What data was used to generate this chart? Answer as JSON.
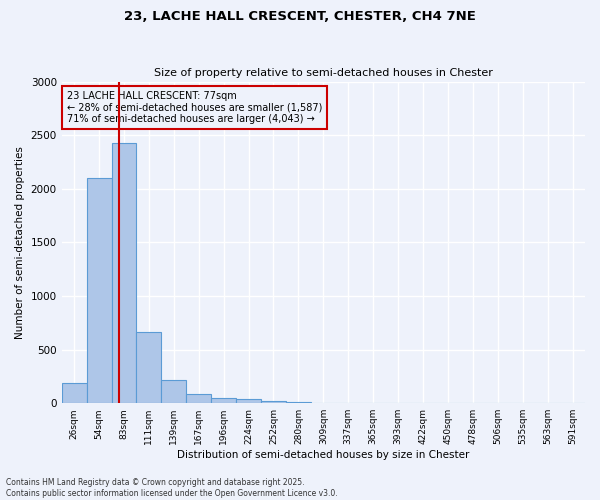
{
  "title_line1": "23, LACHE HALL CRESCENT, CHESTER, CH4 7NE",
  "title_line2": "Size of property relative to semi-detached houses in Chester",
  "xlabel": "Distribution of semi-detached houses by size in Chester",
  "ylabel": "Number of semi-detached properties",
  "bar_color": "#aec6e8",
  "bar_edge_color": "#5b9bd5",
  "marker_line_color": "#cc0000",
  "annotation_title": "23 LACHE HALL CRESCENT: 77sqm",
  "annotation_line1": "← 28% of semi-detached houses are smaller (1,587)",
  "annotation_line2": "71% of semi-detached houses are larger (4,043) →",
  "annotation_box_color": "#cc0000",
  "annotation_text_color": "#000000",
  "categories": [
    "26sqm",
    "54sqm",
    "83sqm",
    "111sqm",
    "139sqm",
    "167sqm",
    "196sqm",
    "224sqm",
    "252sqm",
    "280sqm",
    "309sqm",
    "337sqm",
    "365sqm",
    "393sqm",
    "422sqm",
    "450sqm",
    "478sqm",
    "506sqm",
    "535sqm",
    "563sqm",
    "591sqm"
  ],
  "values": [
    185,
    2100,
    2430,
    660,
    215,
    90,
    50,
    40,
    25,
    10,
    5,
    2,
    1,
    0,
    0,
    0,
    0,
    0,
    0,
    0,
    0
  ],
  "ylim": [
    0,
    3000
  ],
  "yticks": [
    0,
    500,
    1000,
    1500,
    2000,
    2500,
    3000
  ],
  "background_color": "#eef2fb",
  "grid_color": "#ffffff",
  "footer_line1": "Contains HM Land Registry data © Crown copyright and database right 2025.",
  "footer_line2": "Contains public sector information licensed under the Open Government Licence v3.0.",
  "figsize": [
    6.0,
    5.0
  ],
  "dpi": 100
}
